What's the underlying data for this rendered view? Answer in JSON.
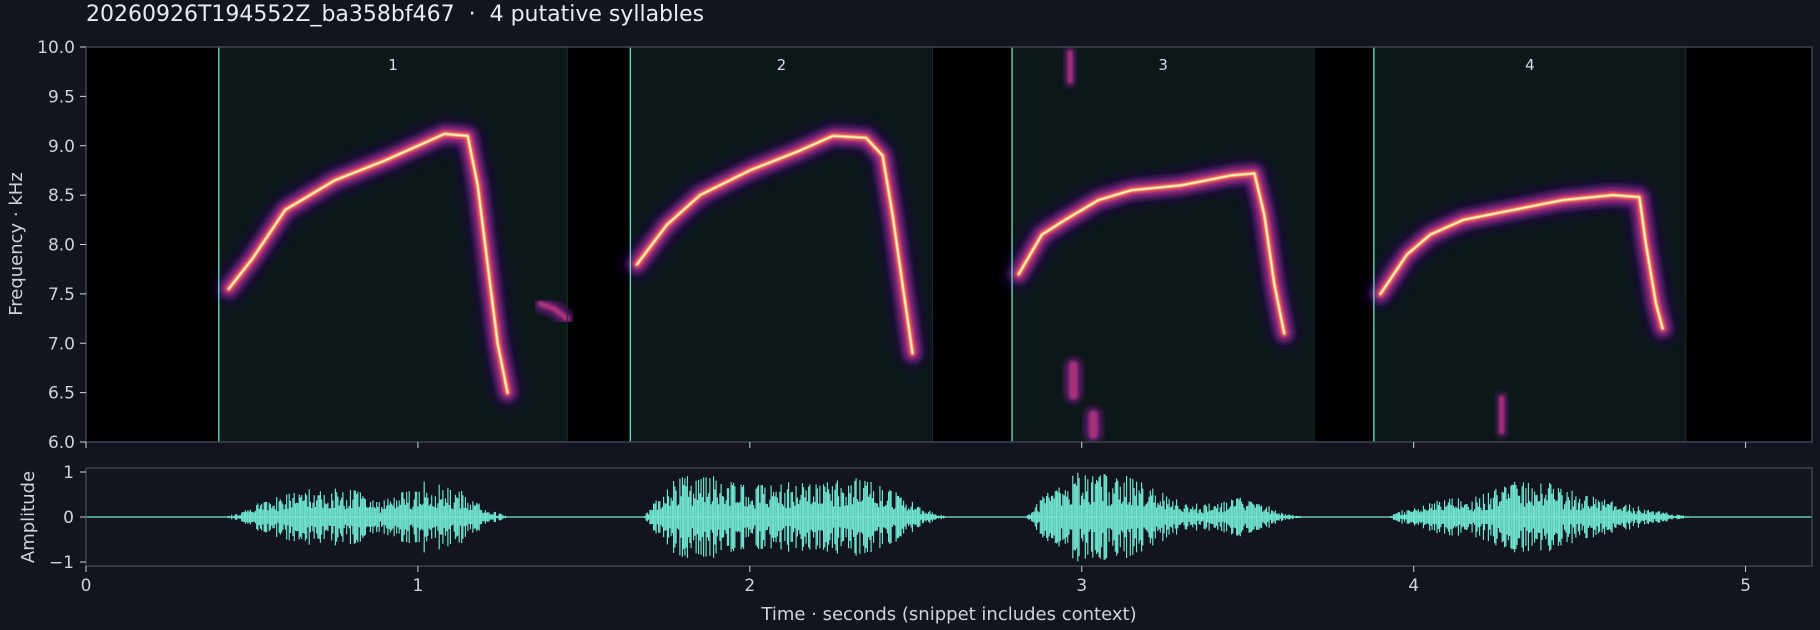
{
  "title": "20260926T194552Z_ba358bf467  ·  4 putative syllables",
  "colors": {
    "background": "#12151f",
    "frame": "#3d4352",
    "syllable_fill": "#0b1718",
    "syllable_edge": "#5fd6bf",
    "waveform": "#72e8d3",
    "spectrogram_colormap": "magma"
  },
  "chart_data": [
    {
      "type": "heatmap",
      "name": "spectrogram",
      "ylabel": "Frequency · kHz",
      "ylim": [
        6.0,
        10.0
      ],
      "xlim": [
        0,
        5.2
      ],
      "yticks": [
        "6.0",
        "6.5",
        "7.0",
        "7.5",
        "8.0",
        "8.5",
        "9.0",
        "9.5",
        "10.0"
      ],
      "syllables": [
        {
          "label": "1",
          "start": 0.4,
          "end": 1.45
        },
        {
          "label": "2",
          "start": 1.64,
          "end": 2.55
        },
        {
          "label": "3",
          "start": 2.79,
          "end": 3.7
        },
        {
          "label": "4",
          "start": 3.88,
          "end": 4.82
        }
      ],
      "syllable_contours": [
        {
          "points": [
            [
              0.43,
              7.55
            ],
            [
              0.5,
              7.85
            ],
            [
              0.6,
              8.35
            ],
            [
              0.75,
              8.65
            ],
            [
              0.9,
              8.85
            ],
            [
              1.0,
              9.0
            ],
            [
              1.08,
              9.12
            ],
            [
              1.15,
              9.1
            ],
            [
              1.18,
              8.6
            ],
            [
              1.21,
              7.8
            ],
            [
              1.24,
              7.0
            ],
            [
              1.27,
              6.5
            ]
          ],
          "extra": [
            [
              1.37,
              7.4
            ],
            [
              1.41,
              7.35
            ],
            [
              1.45,
              7.25
            ]
          ]
        },
        {
          "points": [
            [
              1.66,
              7.8
            ],
            [
              1.75,
              8.2
            ],
            [
              1.85,
              8.5
            ],
            [
              2.0,
              8.75
            ],
            [
              2.15,
              8.95
            ],
            [
              2.25,
              9.1
            ],
            [
              2.35,
              9.08
            ],
            [
              2.4,
              8.9
            ],
            [
              2.43,
              8.3
            ],
            [
              2.46,
              7.6
            ],
            [
              2.49,
              6.9
            ]
          ]
        },
        {
          "points": [
            [
              2.81,
              7.7
            ],
            [
              2.88,
              8.1
            ],
            [
              2.95,
              8.25
            ],
            [
              3.05,
              8.45
            ],
            [
              3.15,
              8.55
            ],
            [
              3.3,
              8.6
            ],
            [
              3.45,
              8.7
            ],
            [
              3.52,
              8.72
            ],
            [
              3.55,
              8.3
            ],
            [
              3.58,
              7.6
            ],
            [
              3.61,
              7.1
            ]
          ]
        },
        {
          "points": [
            [
              3.9,
              7.5
            ],
            [
              3.98,
              7.9
            ],
            [
              4.05,
              8.1
            ],
            [
              4.15,
              8.25
            ],
            [
              4.3,
              8.35
            ],
            [
              4.45,
              8.45
            ],
            [
              4.6,
              8.5
            ],
            [
              4.68,
              8.48
            ],
            [
              4.7,
              8.0
            ],
            [
              4.73,
              7.4
            ],
            [
              4.75,
              7.15
            ]
          ]
        }
      ],
      "noise_blobs": [
        {
          "x": [
            2.95,
            2.98
          ],
          "y": [
            9.6,
            10.0
          ]
        },
        {
          "x": [
            2.95,
            3.0
          ],
          "y": [
            6.4,
            6.85
          ]
        },
        {
          "x": [
            3.01,
            3.06
          ],
          "y": [
            6.0,
            6.35
          ]
        },
        {
          "x": [
            4.25,
            4.28
          ],
          "y": [
            6.05,
            6.5
          ]
        }
      ]
    },
    {
      "type": "line",
      "name": "waveform",
      "xlabel": "Time · seconds (snippet includes context)",
      "ylabel": "Amplitude",
      "ylim": [
        -1,
        1
      ],
      "xlim": [
        0,
        5.2
      ],
      "xticks": [
        "0",
        "1",
        "2",
        "3",
        "4",
        "5"
      ],
      "yticks": [
        "1",
        "0",
        "−1"
      ],
      "envelopes": [
        {
          "start": 0.42,
          "end": 1.22,
          "peaks": [
            [
              0.5,
              0.25
            ],
            [
              0.6,
              0.55
            ],
            [
              0.72,
              0.7
            ],
            [
              0.82,
              0.6
            ],
            [
              0.88,
              0.35
            ],
            [
              0.95,
              0.55
            ],
            [
              1.02,
              0.8
            ],
            [
              1.08,
              0.7
            ],
            [
              1.14,
              0.6
            ],
            [
              1.2,
              0.2
            ]
          ]
        },
        {
          "start": 1.68,
          "end": 2.55,
          "peaks": [
            [
              1.72,
              0.55
            ],
            [
              1.8,
              0.95
            ],
            [
              1.9,
              0.9
            ],
            [
              2.0,
              0.7
            ],
            [
              2.1,
              0.8
            ],
            [
              2.2,
              0.75
            ],
            [
              2.3,
              0.95
            ],
            [
              2.38,
              0.85
            ],
            [
              2.45,
              0.55
            ],
            [
              2.52,
              0.2
            ]
          ]
        },
        {
          "start": 2.83,
          "end": 3.6,
          "peaks": [
            [
              2.88,
              0.45
            ],
            [
              2.95,
              1.0
            ],
            [
              3.05,
              1.0
            ],
            [
              3.15,
              0.9
            ],
            [
              3.22,
              0.65
            ],
            [
              3.3,
              0.35
            ],
            [
              3.4,
              0.3
            ],
            [
              3.48,
              0.45
            ],
            [
              3.55,
              0.3
            ],
            [
              3.6,
              0.1
            ]
          ]
        },
        {
          "start": 3.92,
          "end": 4.8,
          "peaks": [
            [
              3.98,
              0.2
            ],
            [
              4.08,
              0.4
            ],
            [
              4.18,
              0.45
            ],
            [
              4.28,
              0.75
            ],
            [
              4.36,
              0.95
            ],
            [
              4.44,
              0.7
            ],
            [
              4.52,
              0.55
            ],
            [
              4.6,
              0.35
            ],
            [
              4.68,
              0.25
            ],
            [
              4.76,
              0.1
            ]
          ]
        }
      ]
    }
  ]
}
